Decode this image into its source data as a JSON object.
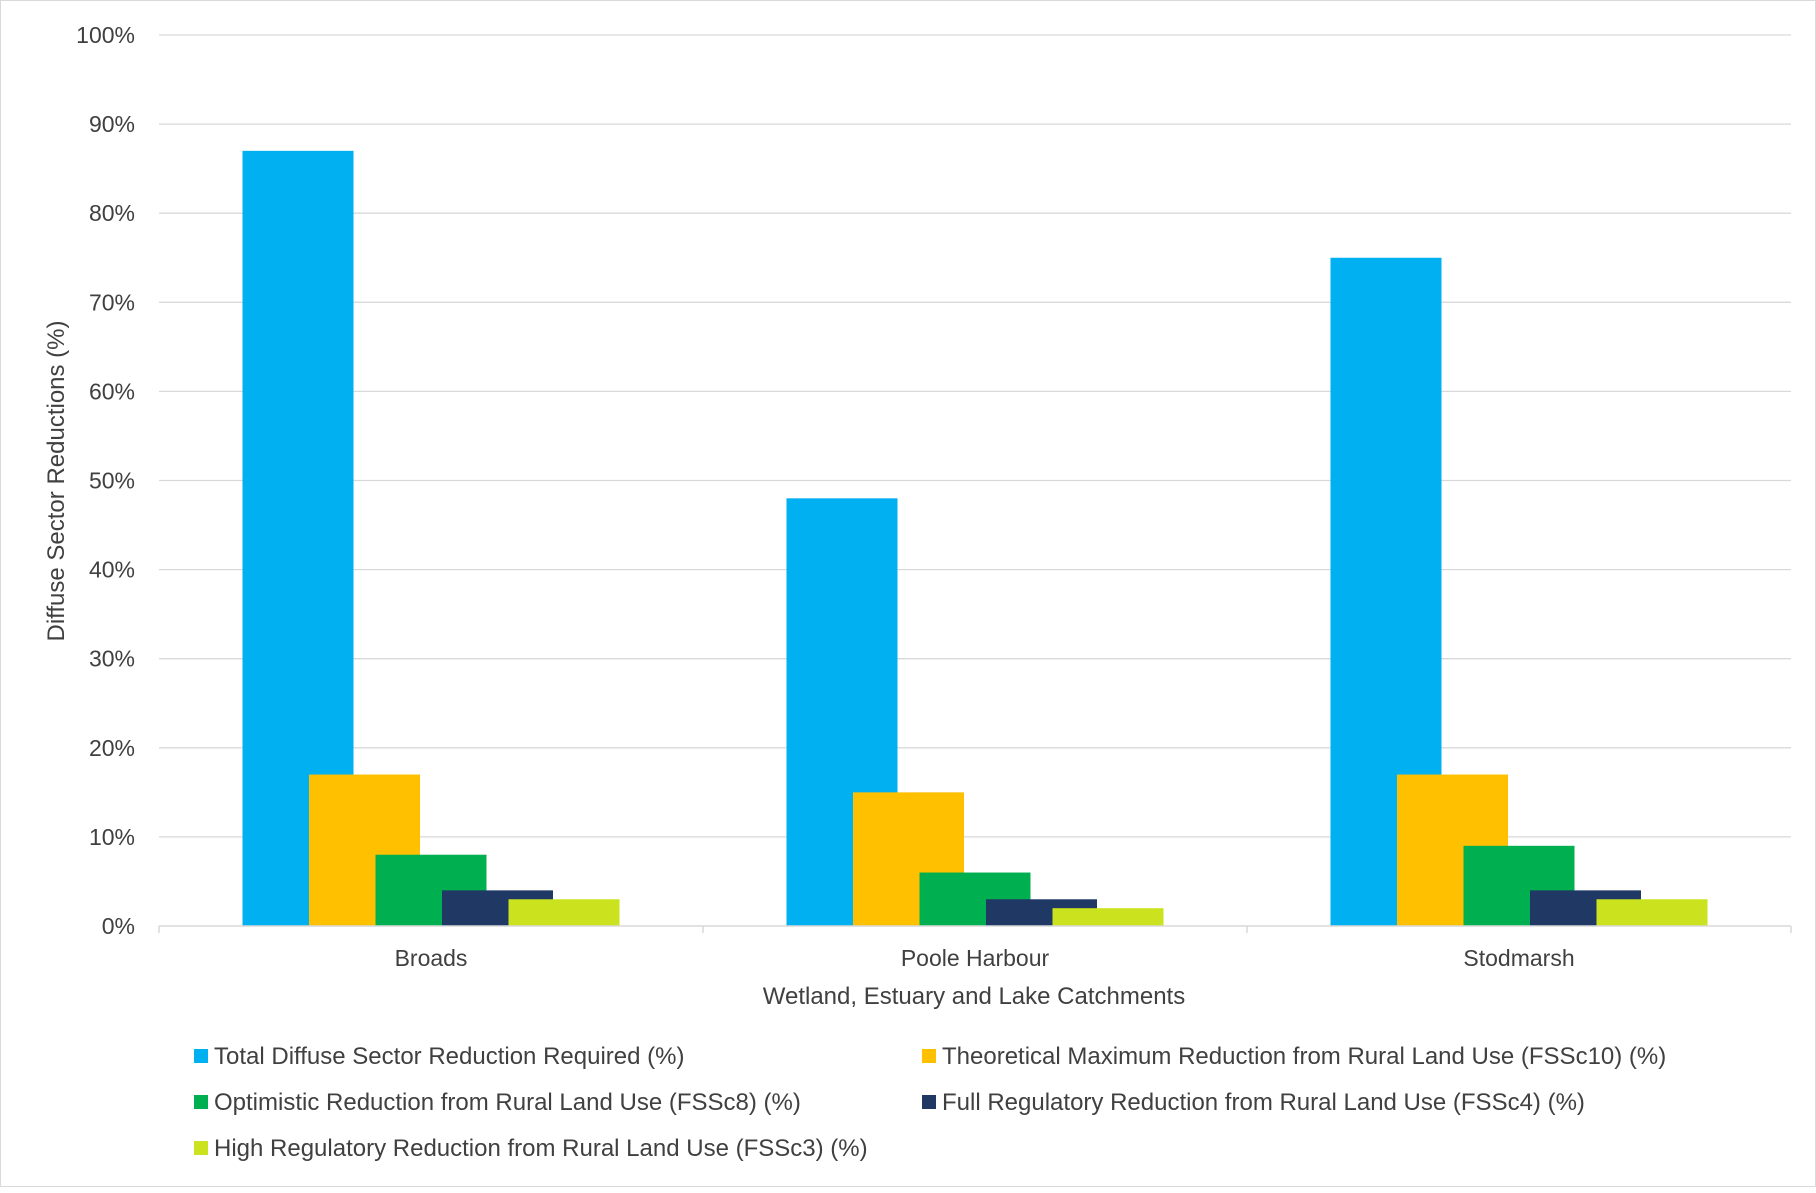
{
  "chart_data": {
    "type": "bar",
    "title": "",
    "xlabel": "Wetland, Estuary and Lake Catchments",
    "ylabel": "Diffuse Sector Reductions (%)",
    "ylim": [
      0,
      100
    ],
    "yticks": [
      0,
      10,
      20,
      30,
      40,
      50,
      60,
      70,
      80,
      90,
      100
    ],
    "ytick_labels": [
      "0%",
      "10%",
      "20%",
      "30%",
      "40%",
      "50%",
      "60%",
      "70%",
      "80%",
      "90%",
      "100%"
    ],
    "categories": [
      "Broads",
      "Poole Harbour",
      "Stodmarsh"
    ],
    "grid": true,
    "legend_position": "bottom",
    "series": [
      {
        "name": "Total Diffuse Sector Reduction Required (%)",
        "color": "#00b0f0",
        "values": [
          87,
          48,
          75
        ]
      },
      {
        "name": "Theoretical Maximum Reduction from Rural Land Use (FSSc10) (%)",
        "color": "#ffc000",
        "values": [
          17,
          15,
          17
        ]
      },
      {
        "name": "Optimistic Reduction from Rural Land Use (FSSc8) (%)",
        "color": "#00b050",
        "values": [
          8,
          6,
          9
        ]
      },
      {
        "name": "Full Regulatory Reduction from Rural Land Use (FSSc4) (%)",
        "color": "#1f3864",
        "values": [
          4,
          3,
          4
        ]
      },
      {
        "name": "High Regulatory Reduction from Rural Land Use (FSSc3) (%)",
        "color": "#cbe31f",
        "values": [
          3,
          2,
          3
        ]
      }
    ]
  }
}
